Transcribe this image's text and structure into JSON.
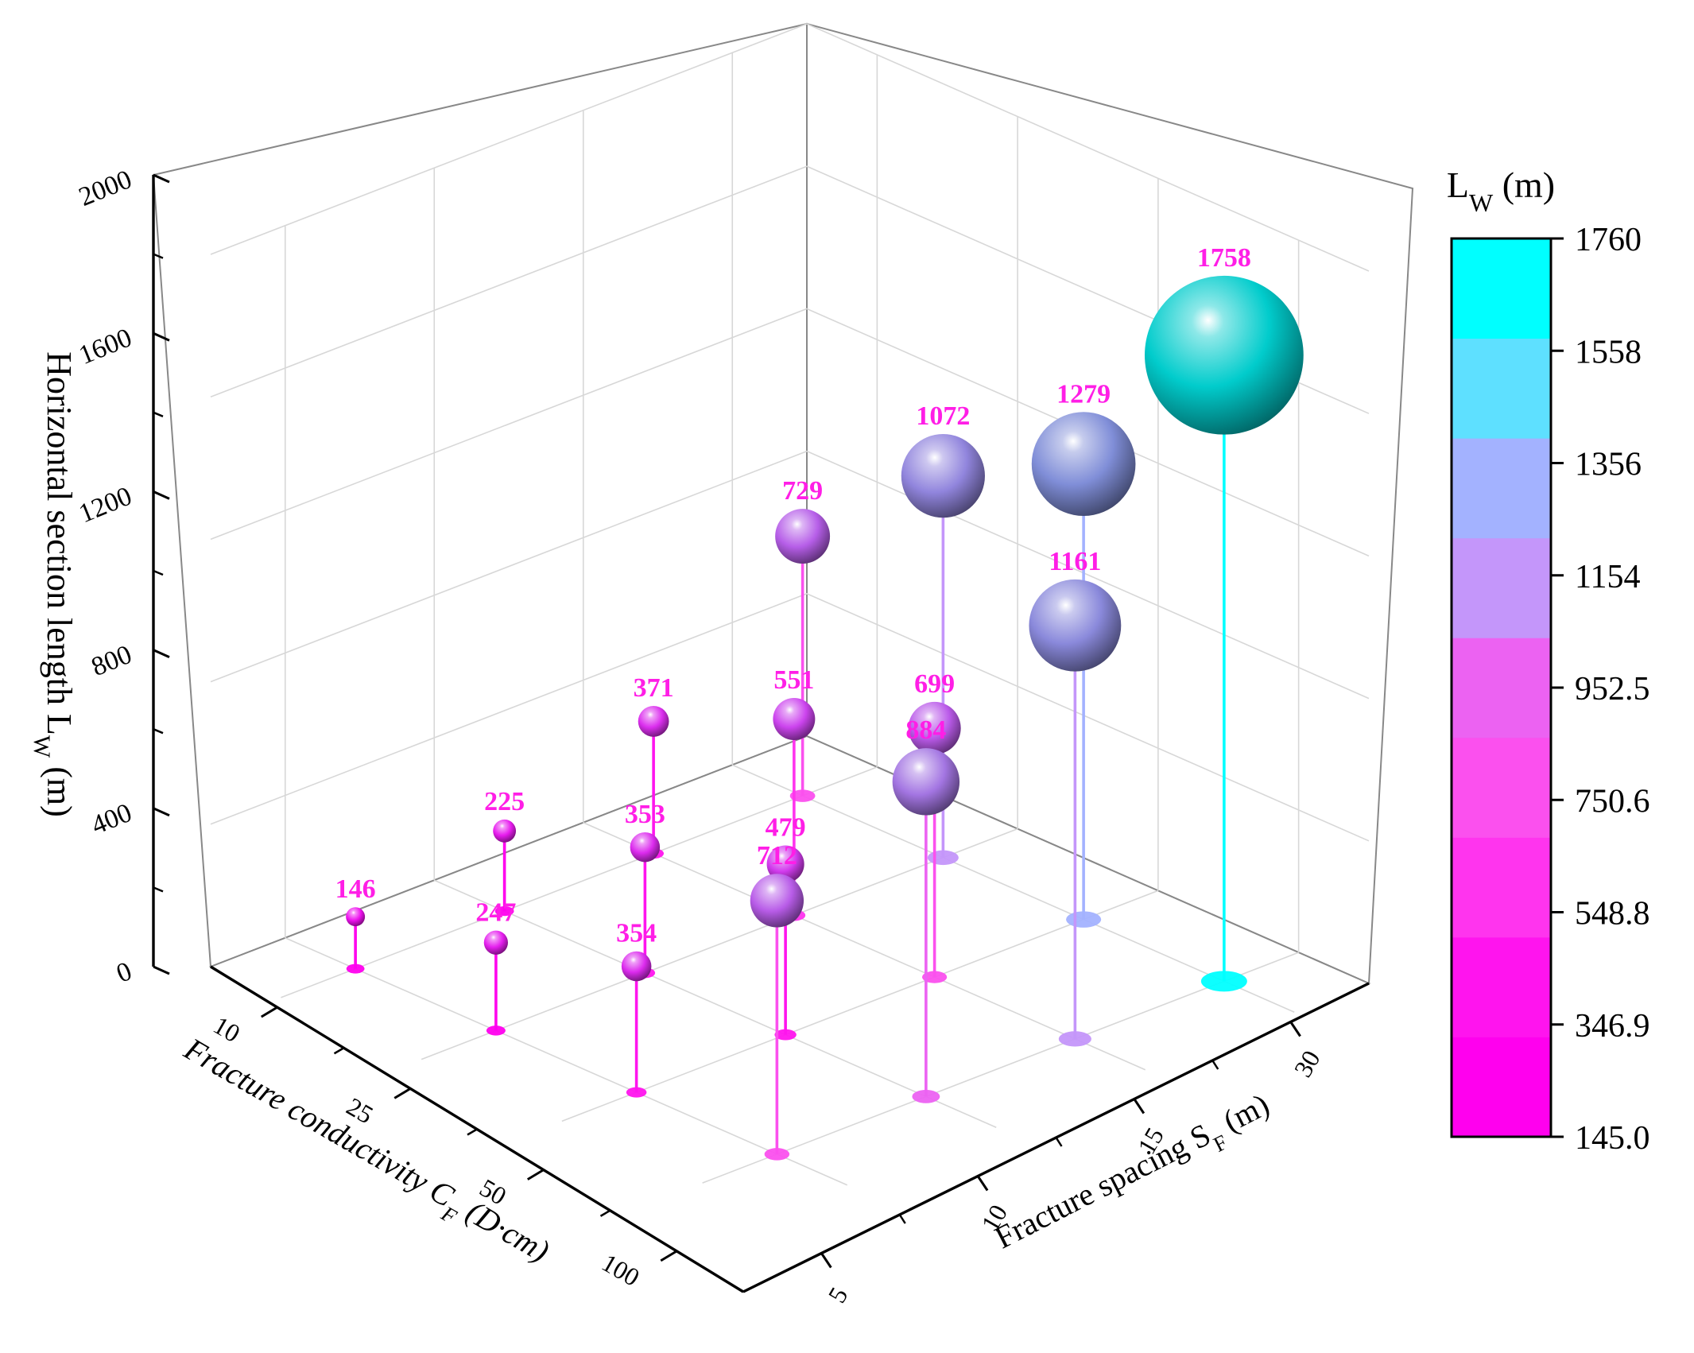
{
  "chart_data": {
    "type": "scatter",
    "subtype": "3d-drop-line-bubble",
    "xlabel_parts": {
      "main": "Fracture conductivity C",
      "sub": "F",
      "tail": " (D·cm)"
    },
    "ylabel_parts": {
      "main": "Fracture spacing S",
      "sub": "F",
      "tail": " (m)"
    },
    "zlabel_parts": {
      "main": "Horizontal section length L",
      "sub": "W",
      "tail": " (m)"
    },
    "x_ticks": [
      "10",
      "25",
      "50",
      "100"
    ],
    "y_ticks": [
      "5",
      "10",
      "15",
      "30"
    ],
    "z_ticks": [
      "0",
      "400",
      "800",
      "1200",
      "1600",
      "2000"
    ],
    "zlim": [
      0,
      2000
    ],
    "grid": true,
    "points": [
      {
        "x": "100",
        "y": "5",
        "z": 146
      },
      {
        "x": "100",
        "y": "10",
        "z": 247
      },
      {
        "x": "100",
        "y": "15",
        "z": 354
      },
      {
        "x": "100",
        "y": "30",
        "z": 712
      },
      {
        "x": "50",
        "y": "5",
        "z": 225
      },
      {
        "x": "50",
        "y": "10",
        "z": 353
      },
      {
        "x": "50",
        "y": "15",
        "z": 479
      },
      {
        "x": "50",
        "y": "30",
        "z": 884
      },
      {
        "x": "25",
        "y": "5",
        "z": 371
      },
      {
        "x": "25",
        "y": "10",
        "z": 551
      },
      {
        "x": "25",
        "y": "15",
        "z": 699
      },
      {
        "x": "25",
        "y": "30",
        "z": 1161
      },
      {
        "x": "10",
        "y": "5",
        "z": 729
      },
      {
        "x": "10",
        "y": "10",
        "z": 1072
      },
      {
        "x": "10",
        "y": "15",
        "z": 1279
      },
      {
        "x": "10",
        "y": "30",
        "z": 1758
      }
    ],
    "colorbar": {
      "title_parts": {
        "main": "L",
        "sub": "W",
        "tail": " (m)"
      },
      "ticks": [
        "145.0",
        "346.9",
        "548.8",
        "750.6",
        "952.5",
        "1154",
        "1356",
        "1558",
        "1760"
      ],
      "range": [
        145.0,
        1760
      ],
      "levels": [
        "#ff00ee",
        "#ff14ee",
        "#ff34ee",
        "#fb50ee",
        "#ec62f2",
        "#c496fa",
        "#a3b2ff",
        "#5ee0ff",
        "#00ffff"
      ]
    },
    "label_color": "#ff1ee6",
    "sphere_color_scale": [
      "#ee11ee",
      "#cc44ee",
      "#9b7fe0",
      "#7a92d6",
      "#00cccc"
    ]
  }
}
